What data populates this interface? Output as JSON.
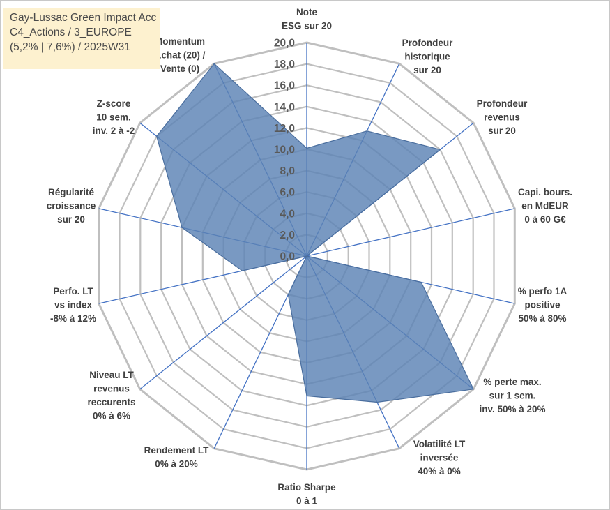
{
  "title": {
    "line1": "Gay-Lussac Green Impact Acc",
    "line2": "C4_Actions / 3_EUROPE",
    "line3": "(5,2% | 7,6%) / 2025W31"
  },
  "colors": {
    "grid": "#bfbfbf",
    "spokes": "#4472c4",
    "fill": "#5b83b4",
    "fill_opacity": 0.82,
    "outline": "#4a6e9e"
  },
  "chart_data": {
    "type": "radar",
    "range": [
      0,
      20
    ],
    "step": 2,
    "tick_labels": [
      "0,0",
      "2,0",
      "4,0",
      "6,0",
      "8,0",
      "10,0",
      "12,0",
      "14,0",
      "16,0",
      "18,0",
      "20,0"
    ],
    "axes": [
      {
        "label": [
          "Note",
          "ESG sur 20"
        ],
        "value": 10.1
      },
      {
        "label": [
          "Profondeur",
          "historique",
          "sur 20"
        ],
        "value": 13.0
      },
      {
        "label": [
          "Profondeur",
          "revenus",
          "sur 20"
        ],
        "value": 16.0
      },
      {
        "label": [
          "Capi. bours.",
          "en MdEUR",
          "0 à 60 G€"
        ],
        "value": 0.0
      },
      {
        "label": [
          "% perfo 1A",
          "positive",
          "50% à 80%"
        ],
        "value": 11.0
      },
      {
        "label": [
          "% perte max.",
          "sur 1 sem.",
          "inv. 50% à 20%"
        ],
        "value": 20.0
      },
      {
        "label": [
          "Volatilité LT",
          "inversée",
          "40% à 0%"
        ],
        "value": 15.2
      },
      {
        "label": [
          "Ratio Sharpe",
          "0 à 1"
        ],
        "value": 13.1
      },
      {
        "label": [
          "Rendement LT",
          "0% à 20%"
        ],
        "value": 4.0
      },
      {
        "label": [
          "Niveau LT",
          "revenus",
          "reccurents",
          "0% à 6%"
        ],
        "value": 0.0
      },
      {
        "label": [
          "Perfo. LT",
          "vs index",
          "-8% à 12%"
        ],
        "value": 6.2
      },
      {
        "label": [
          "Régularité",
          "croissance",
          "sur 20"
        ],
        "value": 12.0
      },
      {
        "label": [
          "Z-score",
          "10 sem.",
          "inv. 2 à -2"
        ],
        "value": 18.0
      },
      {
        "label": [
          "Momentum",
          "Achat (20) /",
          "Vente (0)"
        ],
        "value": 20.0
      }
    ]
  }
}
